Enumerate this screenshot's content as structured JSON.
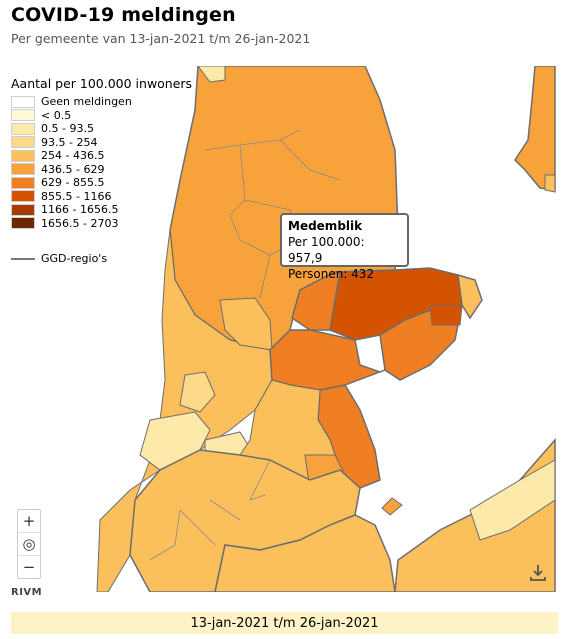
{
  "header": {
    "title": "COVID-19 meldingen",
    "subtitle": "Per gemeente van 13-jan-2021 t/m 26-jan-2021"
  },
  "legend": {
    "title": "Aantal per 100.000 inwoners",
    "items": [
      {
        "label": "Geen meldingen",
        "color": "#ffffff"
      },
      {
        "label": "< 0.5",
        "color": "#fff7d6"
      },
      {
        "label": "0.5 - 93.5",
        "color": "#fde9a9"
      },
      {
        "label": "93.5 - 254",
        "color": "#fdd98a"
      },
      {
        "label": "254 - 436.5",
        "color": "#fbbf5c"
      },
      {
        "label": "436.5 - 629",
        "color": "#f7a23a"
      },
      {
        "label": "629 - 855.5",
        "color": "#ef7f22"
      },
      {
        "label": "855.5 - 1166",
        "color": "#d35300"
      },
      {
        "label": "1166 - 1656.5",
        "color": "#a43e00"
      },
      {
        "label": "1656.5 - 2703",
        "color": "#6b2700"
      }
    ],
    "boundary_label": "GGD-regio's"
  },
  "tooltip": {
    "name": "Medemblik",
    "per100k": "Per 100.000: 957,9",
    "persons": "Personen: 432"
  },
  "controls": {
    "zoom_in": "+",
    "locate": "◎",
    "zoom_out": "−"
  },
  "attribution": "RIVM",
  "period_label": "13-jan-2021 t/m 26-jan-2021",
  "colors": {
    "water": "#ffffff",
    "border": "#6d6d6d",
    "period_bar": "#fdf3c4"
  }
}
